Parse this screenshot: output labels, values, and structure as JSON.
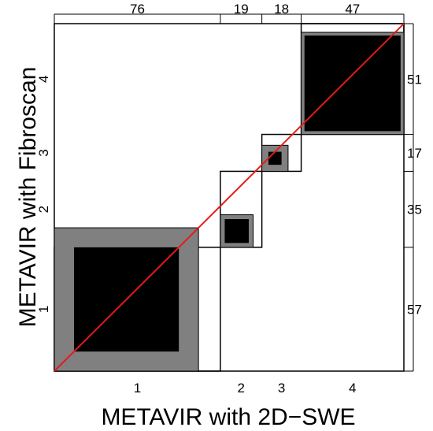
{
  "chart_data": {
    "type": "agreement-chart",
    "xlabel": "METAVIR with 2D−SWE",
    "ylabel": "METAVIR with Fibroscan",
    "categories": [
      "1",
      "2",
      "3",
      "4"
    ],
    "x_totals": [
      76,
      19,
      18,
      47
    ],
    "y_totals": [
      57,
      35,
      17,
      51
    ],
    "exact_agreement": [
      48,
      11,
      6,
      44
    ],
    "partial_agreement": [
      66,
      15,
      12,
      47
    ],
    "colors": {
      "exact": "#000000",
      "partial": "#808080",
      "diagonal": "#e41a1c",
      "frame": "#000000"
    }
  }
}
